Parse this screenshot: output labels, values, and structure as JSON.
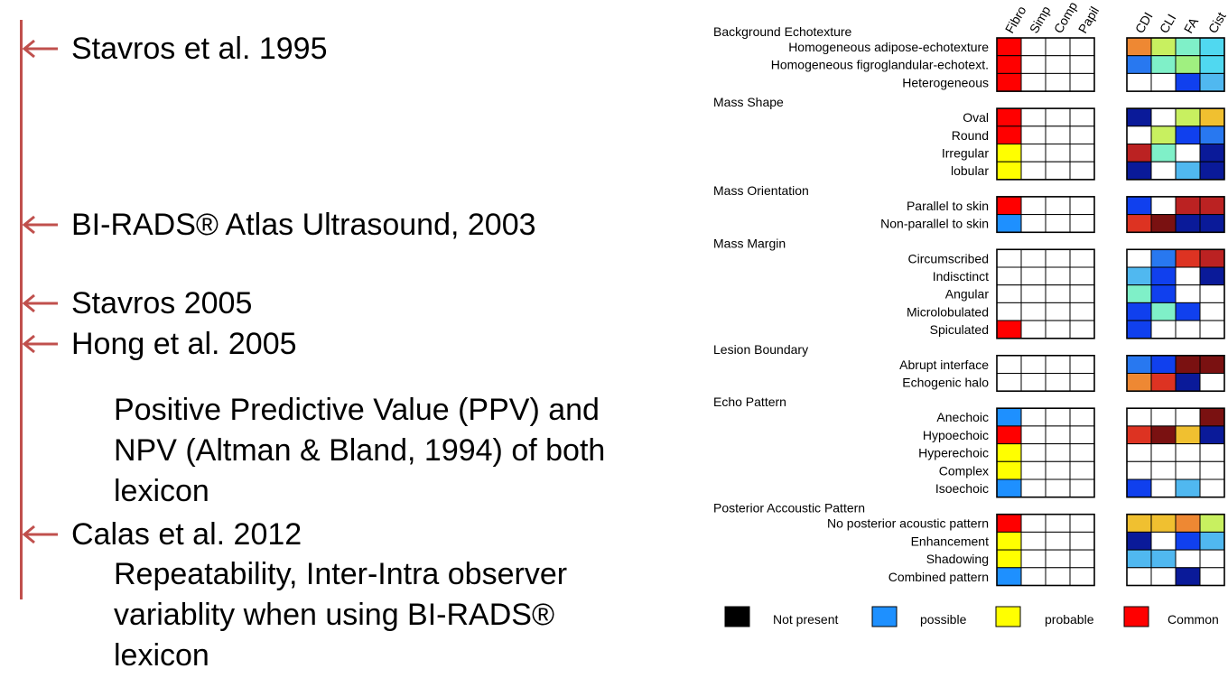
{
  "timeline": {
    "line_color": "#c0504d",
    "entries": [
      {
        "label": "Stavros et al. 1995"
      },
      {
        "label": "BI-RADS® Atlas Ultrasound, 2003"
      },
      {
        "label": "Stavros 2005"
      },
      {
        "label": "Hong et al. 2005"
      },
      {
        "label": "Calas et al. 2012"
      }
    ],
    "notes": [
      {
        "lines": [
          "Positive Predictive Value (PPV) and",
          "NPV (Altman & Bland, 1994) of both",
          "lexicon"
        ]
      },
      {
        "lines": [
          "Repeatability, Inter-Intra observer",
          "variablity when using BI-RADS®",
          "lexicon"
        ]
      }
    ]
  },
  "matrix": {
    "left_columns": [
      "Fibro",
      "Simp",
      "Comp",
      "Papil"
    ],
    "right_columns": [
      "CDI",
      "CLI",
      "FA",
      "Cist"
    ],
    "palette": {
      "W": "#ffffff",
      "R": "#ff0000",
      "Y": "#ffff00",
      "B": "#1e90ff",
      "O": "#ee8833",
      "L": "#c8f060",
      "M": "#7ff0c8",
      "G": "#a0f080",
      "C": "#50d8f0",
      "D": "#0a1a99",
      "T": "#1040ee",
      "S": "#50b8f0",
      "K": "#bb2222",
      "E": "#dd3322",
      "F": "#7a1111",
      "U": "#f0c030",
      "P": "#2878f0",
      "Q": "#fff000"
    },
    "groups": [
      {
        "title": "Background Echotexture",
        "rows": [
          {
            "label": "Homogeneous  adipose-echotexture",
            "left": "RWWW",
            "right": "OLMC"
          },
          {
            "label": "Homogeneous figroglandular-echotext.",
            "left": "RWWW",
            "right": "PMGC"
          },
          {
            "label": "Heterogeneous",
            "left": "RWWW",
            "right": "WWTS"
          }
        ]
      },
      {
        "title": "Mass Shape",
        "rows": [
          {
            "label": "Oval",
            "left": "RWWW",
            "right": "DWLU"
          },
          {
            "label": "Round",
            "left": "RWWW",
            "right": "WLTP"
          },
          {
            "label": "Irregular",
            "left": "YWWW",
            "right": "KMWD"
          },
          {
            "label": "lobular",
            "left": "YWWW",
            "right": "DWSD"
          }
        ]
      },
      {
        "title": "Mass Orientation",
        "rows": [
          {
            "label": "Parallel to skin",
            "left": "RWWW",
            "right": "TWKK"
          },
          {
            "label": "Non-parallel to skin",
            "left": "BWWW",
            "right": "EFDD"
          }
        ]
      },
      {
        "title": "Mass Margin",
        "rows": [
          {
            "label": "Circumscribed",
            "left": "WWWW",
            "right": "WPEK"
          },
          {
            "label": "Indisctinct",
            "left": "WWWW",
            "right": "STWD"
          },
          {
            "label": "Angular",
            "left": "WWWW",
            "right": "MTWW"
          },
          {
            "label": "Microlobulated",
            "left": "WWWW",
            "right": "TMTW"
          },
          {
            "label": "Spiculated",
            "left": "RWWW",
            "right": "TWWW"
          }
        ]
      },
      {
        "title": "Lesion Boundary",
        "rows": [
          {
            "label": "Abrupt interface",
            "left": "WWWW",
            "right": "PTFF"
          },
          {
            "label": "Echogenic halo",
            "left": "WWWW",
            "right": "OEDW"
          }
        ]
      },
      {
        "title": "Echo Pattern",
        "rows": [
          {
            "label": "Anechoic",
            "left": "BWWW",
            "right": "WWWF"
          },
          {
            "label": "Hypoechoic",
            "left": "RWWW",
            "right": "EFUD"
          },
          {
            "label": "Hyperechoic",
            "left": "YWWW",
            "right": "WWWW"
          },
          {
            "label": "Complex",
            "left": "YWWW",
            "right": "WWWW"
          },
          {
            "label": "Isoechoic",
            "left": "BWWW",
            "right": "TWSW"
          }
        ]
      },
      {
        "title": "Posterior Accoustic Pattern",
        "rows": [
          {
            "label": "No posterior acoustic pattern",
            "left": "RWWW",
            "right": "UUOL"
          },
          {
            "label": "Enhancement",
            "left": "YWWW",
            "right": "DWTS"
          },
          {
            "label": "Shadowing",
            "left": "YWWW",
            "right": "SSWW"
          },
          {
            "label": "Combined pattern",
            "left": "BWWW",
            "right": "WWDW"
          }
        ]
      }
    ],
    "legend": [
      {
        "color": "#000000",
        "label": "Not present"
      },
      {
        "color": "#1e90ff",
        "label": "possible"
      },
      {
        "color": "#ffff00",
        "label": "probable"
      },
      {
        "color": "#ff0000",
        "label": "Common"
      }
    ]
  }
}
